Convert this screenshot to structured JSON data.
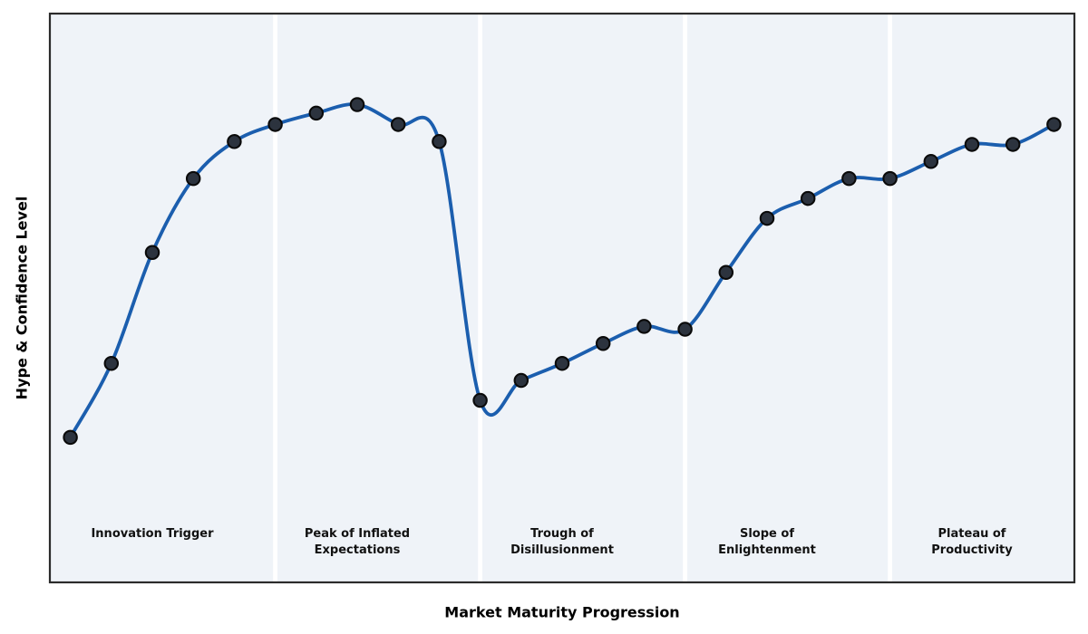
{
  "chart_data": {
    "type": "line",
    "title": "",
    "xlabel": "Market Maturity Progression",
    "ylabel": "Hype & Confidence Level",
    "x": [
      1,
      2,
      3,
      4,
      5,
      6,
      7,
      8,
      9,
      10,
      11,
      12,
      13,
      14,
      15,
      16,
      17,
      18,
      19,
      20,
      21,
      22,
      23,
      24,
      25
    ],
    "series": [
      {
        "name": "Hype & Confidence",
        "values": [
          25.5,
          38.5,
          58,
          71,
          77.5,
          80.5,
          82.5,
          84,
          80.5,
          77.5,
          32,
          35.5,
          38.5,
          42,
          45,
          44.5,
          54.5,
          64,
          67.5,
          71,
          71,
          74,
          77,
          77,
          80.5
        ]
      }
    ],
    "xlim": [
      0.5,
      25.5
    ],
    "ylim": [
      0,
      100
    ],
    "grid": false,
    "legend": "none",
    "axis_ticks": "none",
    "smoothing": "cubic-spline",
    "marker": "circle",
    "phases": [
      {
        "label": "Innovation Trigger",
        "center_x": 3,
        "span": [
          0.5,
          6
        ]
      },
      {
        "label": "Peak of Inflated\nExpectations",
        "center_x": 8,
        "span": [
          6,
          11
        ]
      },
      {
        "label": "Trough of\nDisillusionment",
        "center_x": 13,
        "span": [
          11,
          16
        ]
      },
      {
        "label": "Slope of\nEnlightenment",
        "center_x": 18,
        "span": [
          16,
          21
        ]
      },
      {
        "label": "Plateau of\nProductivity",
        "center_x": 23,
        "span": [
          21,
          25.5
        ]
      }
    ],
    "colors": {
      "line": "#1b5eae",
      "marker_fill": "#2c333e",
      "marker_edge": "#0a0a0a",
      "band_fill": "#eff3f8",
      "band_gap": "#ffffff",
      "frame": "#2b2b2b",
      "background": "#ffffff",
      "text": "#000000"
    }
  }
}
